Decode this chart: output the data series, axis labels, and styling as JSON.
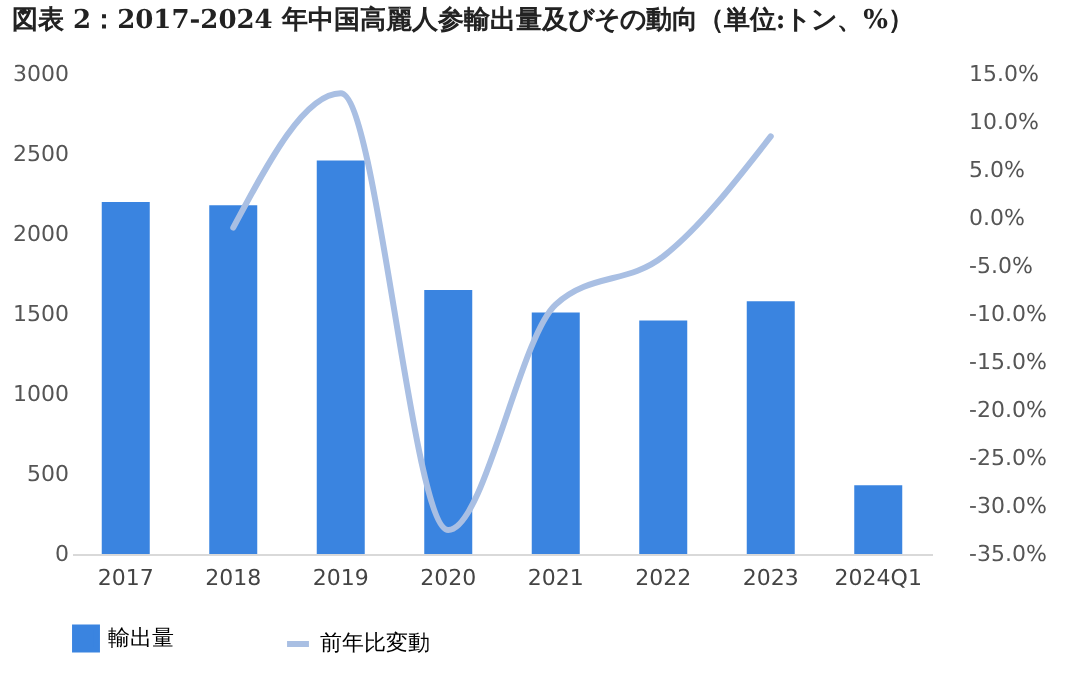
{
  "chart_data": {
    "type": "bar",
    "title": "図表 2：2017-2024 年中国高麗人参輸出量及びその動向（単位:トン、%）",
    "categories": [
      "2017",
      "2018",
      "2019",
      "2020",
      "2021",
      "2022",
      "2023",
      "2024Q1"
    ],
    "series": [
      {
        "name": "輸出量",
        "color": "#3a84e0",
        "values": [
          2200,
          2180,
          2460,
          1650,
          1510,
          1460,
          1580,
          430
        ]
      },
      {
        "name": "前年比変動",
        "type": "line",
        "axis": "y2",
        "color": "#a9bfe3",
        "values": [
          null,
          -1,
          13,
          -32.5,
          -9,
          -4,
          8.5,
          null
        ]
      }
    ],
    "ylim": [
      0,
      3000
    ],
    "yticks": [
      0,
      500,
      1000,
      1500,
      2000,
      2500,
      3000
    ],
    "y2lim": [
      -35,
      15
    ],
    "y2ticks": [
      {
        "value": -35,
        "label": "-35.0%"
      },
      {
        "value": -30,
        "label": "-30.0%"
      },
      {
        "value": -25,
        "label": "-25.0%"
      },
      {
        "value": -20,
        "label": "-20.0%"
      },
      {
        "value": -15,
        "label": "-15.0%"
      },
      {
        "value": -10,
        "label": "-10.0%"
      },
      {
        "value": -5,
        "label": "-5.0%"
      },
      {
        "value": 0,
        "label": "0.0%"
      },
      {
        "value": 5,
        "label": "5.0%"
      },
      {
        "value": 10,
        "label": "10.0%"
      },
      {
        "value": 15,
        "label": "15.0%"
      }
    ],
    "grid": false,
    "legend": "bottom"
  }
}
